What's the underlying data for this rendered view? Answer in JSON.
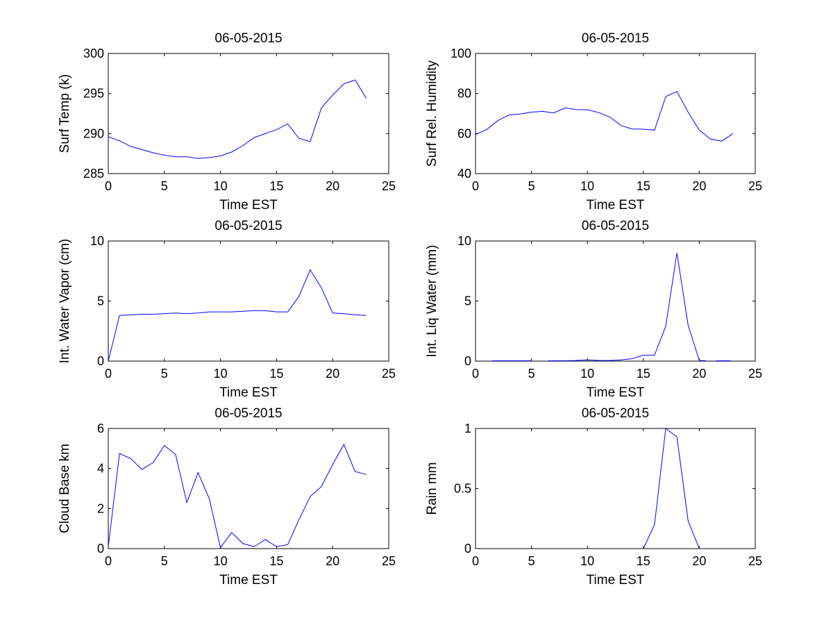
{
  "chart_data": [
    {
      "type": "line",
      "title": "06-05-2015",
      "xlabel": "Time EST",
      "ylabel": "Surf Temp (k)",
      "xlim": [
        0,
        25
      ],
      "ylim": [
        285,
        300
      ],
      "xticks": [
        "0",
        "5",
        "10",
        "15",
        "20",
        "25"
      ],
      "yticks": [
        "285",
        "290",
        "295",
        "300"
      ],
      "color": "#0000ff",
      "segments": [
        {
          "x": [
            0,
            1,
            2,
            3,
            4,
            5,
            6,
            7,
            8,
            9,
            10,
            11,
            12,
            13,
            14,
            15,
            16,
            17,
            18,
            19,
            20,
            21,
            22,
            23
          ],
          "y": [
            289.6,
            289.1,
            288.4,
            288.0,
            287.6,
            287.3,
            287.1,
            287.1,
            286.9,
            287.0,
            287.2,
            287.7,
            288.5,
            289.5,
            290.0,
            290.5,
            291.2,
            289.4,
            289.0,
            293.2,
            294.8,
            296.2,
            296.7,
            294.4
          ]
        }
      ]
    },
    {
      "type": "line",
      "title": "06-05-2015",
      "xlabel": "Time EST",
      "ylabel": "Surf Rel. Humidity",
      "xlim": [
        0,
        25
      ],
      "ylim": [
        40,
        100
      ],
      "xticks": [
        "0",
        "5",
        "10",
        "15",
        "20",
        "25"
      ],
      "yticks": [
        "40",
        "60",
        "80",
        "100"
      ],
      "color": "#0000ff",
      "segments": [
        {
          "x": [
            0,
            1,
            2,
            3,
            4,
            5,
            6,
            7,
            8,
            9,
            10,
            11,
            12,
            13,
            14,
            15,
            16,
            17,
            18,
            19,
            20,
            21,
            22,
            23
          ],
          "y": [
            59.5,
            62.0,
            66.5,
            69.3,
            69.8,
            70.7,
            71.1,
            70.3,
            72.8,
            72.0,
            71.9,
            70.5,
            68.3,
            64.0,
            62.3,
            62.2,
            61.7,
            78.5,
            81.0,
            70.7,
            61.7,
            57.2,
            56.2,
            60.0
          ]
        }
      ]
    },
    {
      "type": "line",
      "title": "06-05-2015",
      "xlabel": "Time EST",
      "ylabel": "Int. Water Vapor (cm)",
      "xlim": [
        0,
        25
      ],
      "ylim": [
        0,
        10
      ],
      "xticks": [
        "0",
        "5",
        "10",
        "15",
        "20",
        "25"
      ],
      "yticks": [
        "0",
        "5",
        "10"
      ],
      "color": "#0000ff",
      "segments": [
        {
          "x": [
            0,
            1,
            2,
            3,
            4,
            5,
            6,
            7,
            8,
            9,
            10,
            11,
            12,
            13,
            14,
            15,
            16,
            17,
            18,
            19,
            20,
            21,
            22,
            23
          ],
          "y": [
            0.0,
            3.8,
            3.85,
            3.9,
            3.9,
            3.95,
            4.0,
            3.95,
            4.0,
            4.1,
            4.1,
            4.1,
            4.15,
            4.2,
            4.2,
            4.1,
            4.1,
            5.4,
            7.6,
            6.1,
            4.0,
            3.95,
            3.85,
            3.8
          ]
        }
      ]
    },
    {
      "type": "line",
      "title": "06-05-2015",
      "xlabel": "Time EST",
      "ylabel": "Int. Liq Water (mm)",
      "xlim": [
        0,
        25
      ],
      "ylim": [
        0,
        10
      ],
      "xticks": [
        "0",
        "5",
        "10",
        "15",
        "20",
        "25"
      ],
      "yticks": [
        "0",
        "5",
        "10"
      ],
      "color": "#0000ff",
      "segments": [
        {
          "x": [
            1.5,
            5
          ],
          "y": [
            0.03,
            0.03
          ]
        },
        {
          "x": [
            6.5,
            7,
            8,
            9,
            10,
            11,
            12,
            13,
            14,
            15,
            16,
            17,
            18,
            19,
            20,
            20.6
          ],
          "y": [
            0.03,
            0.03,
            0.03,
            0.05,
            0.1,
            0.05,
            0.05,
            0.1,
            0.2,
            0.5,
            0.5,
            2.9,
            9.0,
            3.0,
            0.05,
            0.03
          ]
        },
        {
          "x": [
            21.5,
            22.8
          ],
          "y": [
            0.03,
            0.03
          ]
        }
      ]
    },
    {
      "type": "line",
      "title": "06-05-2015",
      "xlabel": "Time EST",
      "ylabel": "Cloud Base km",
      "xlim": [
        0,
        25
      ],
      "ylim": [
        0,
        6
      ],
      "xticks": [
        "0",
        "5",
        "10",
        "15",
        "20",
        "25"
      ],
      "yticks": [
        "0",
        "2",
        "4",
        "6"
      ],
      "color": "#0000ff",
      "segments": [
        {
          "x": [
            0,
            1,
            2,
            3,
            4,
            5,
            6,
            7,
            8,
            9,
            10,
            11,
            12,
            13,
            14,
            15,
            16,
            17,
            18,
            19,
            20,
            21,
            22,
            23
          ],
          "y": [
            0.1,
            4.75,
            4.5,
            3.95,
            4.3,
            5.15,
            4.7,
            2.3,
            3.8,
            2.5,
            0.05,
            0.8,
            0.25,
            0.1,
            0.45,
            0.1,
            0.2,
            1.45,
            2.6,
            3.1,
            4.2,
            5.2,
            3.85,
            3.7
          ]
        }
      ]
    },
    {
      "type": "line",
      "title": "06-05-2015",
      "xlabel": "Time EST",
      "ylabel": "Rain mm",
      "xlim": [
        0,
        25
      ],
      "ylim": [
        0,
        1
      ],
      "xticks": [
        "0",
        "5",
        "10",
        "15",
        "20",
        "25"
      ],
      "yticks": [
        "0",
        "0.5",
        "1"
      ],
      "color": "#0000ff",
      "segments": [
        {
          "x": [
            15,
            16,
            17,
            18,
            19,
            20
          ],
          "y": [
            0.0,
            0.2,
            1.0,
            0.93,
            0.23,
            0.0
          ]
        }
      ]
    }
  ]
}
